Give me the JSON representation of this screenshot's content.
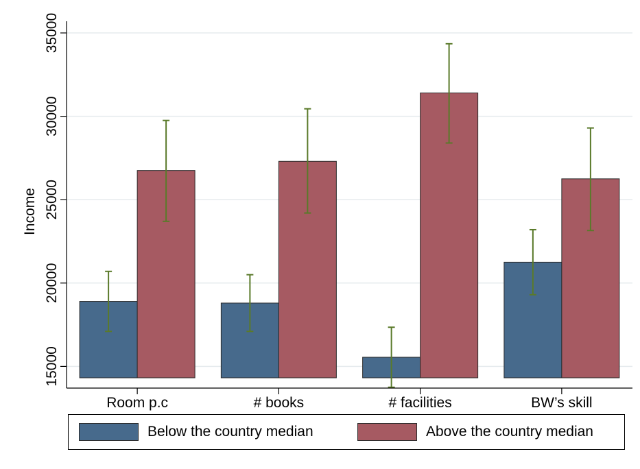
{
  "chart_data": {
    "type": "bar",
    "title": "",
    "xlabel": "",
    "ylabel": "Income",
    "ylim": [
      13700,
      35700
    ],
    "yticks": [
      15000,
      20000,
      25000,
      30000,
      35000
    ],
    "ytick_labels": [
      "15000",
      "20000",
      "25000",
      "30000",
      "35000"
    ],
    "grid": true,
    "legend_position": "bottom",
    "categories": [
      "Room p.c",
      "# books",
      "# facilities",
      "BW’s skill"
    ],
    "series": [
      {
        "name": "Below the country median",
        "color": "#476a8c",
        "values": [
          18900,
          18800,
          15550,
          21250
        ],
        "error_low": [
          17100,
          17100,
          13750,
          19300
        ],
        "error_high": [
          20700,
          20500,
          17350,
          23200
        ]
      },
      {
        "name": "Above the country median",
        "color": "#a65a62",
        "values": [
          26750,
          27300,
          31400,
          26250
        ],
        "error_low": [
          23700,
          24200,
          28400,
          23150
        ],
        "error_high": [
          29750,
          30450,
          34350,
          29300
        ]
      }
    ],
    "error_bar_color": "#5a7a2a"
  }
}
